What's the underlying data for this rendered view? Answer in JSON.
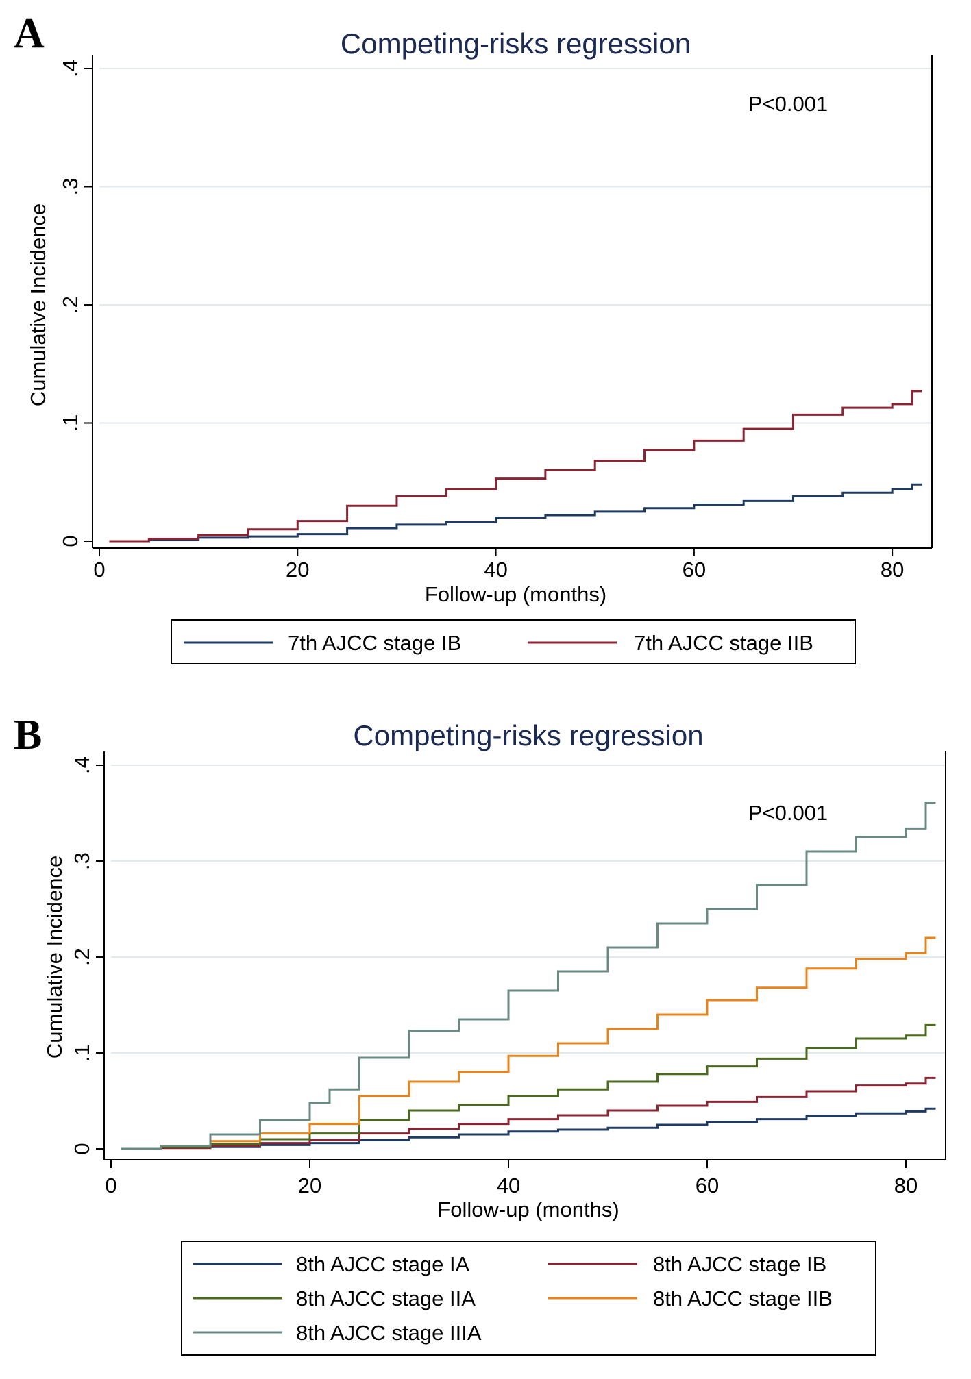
{
  "chart_data": [
    {
      "panel_label": "A",
      "type": "line",
      "step": true,
      "title": "Competing-risks regression",
      "xlabel": "Follow-up (months)",
      "ylabel": "Cumulative Incidence",
      "xlim": [
        0,
        84
      ],
      "ylim": [
        0,
        0.4
      ],
      "xticks": [
        0,
        20,
        40,
        60,
        80
      ],
      "xtick_labels": [
        "0",
        "20",
        "40",
        "60",
        "80"
      ],
      "yticks": [
        0,
        0.1,
        0.2,
        0.3,
        0.4
      ],
      "ytick_labels": [
        "0",
        ".1",
        ".2",
        ".3",
        ".4"
      ],
      "grid": true,
      "annotation": "P<0.001",
      "legend_position": "bottom",
      "series": [
        {
          "name": "7th AJCC stage IB",
          "color": "#1f3b63",
          "x": [
            1,
            5,
            10,
            15,
            20,
            25,
            30,
            35,
            40,
            45,
            50,
            55,
            60,
            65,
            70,
            75,
            80,
            82,
            83
          ],
          "y": [
            0,
            0.001,
            0.003,
            0.004,
            0.006,
            0.011,
            0.014,
            0.016,
            0.02,
            0.022,
            0.025,
            0.028,
            0.031,
            0.034,
            0.038,
            0.041,
            0.044,
            0.048,
            0.048
          ]
        },
        {
          "name": "7th AJCC stage IIB",
          "color": "#8b2332",
          "x": [
            1,
            5,
            10,
            15,
            20,
            25,
            30,
            35,
            40,
            45,
            50,
            55,
            60,
            65,
            70,
            75,
            80,
            82,
            83
          ],
          "y": [
            0,
            0.002,
            0.005,
            0.01,
            0.017,
            0.03,
            0.038,
            0.044,
            0.053,
            0.06,
            0.068,
            0.077,
            0.085,
            0.095,
            0.107,
            0.113,
            0.116,
            0.127,
            0.127
          ]
        }
      ]
    },
    {
      "panel_label": "B",
      "type": "line",
      "step": true,
      "title": "Competing-risks regression",
      "xlabel": "Follow-up (months)",
      "ylabel": "Cumulative Incidence",
      "xlim": [
        0,
        84
      ],
      "ylim": [
        0,
        0.4
      ],
      "xticks": [
        0,
        20,
        40,
        60,
        80
      ],
      "xtick_labels": [
        "0",
        "20",
        "40",
        "60",
        "80"
      ],
      "yticks": [
        0,
        0.1,
        0.2,
        0.3,
        0.4
      ],
      "ytick_labels": [
        "0",
        ".1",
        ".2",
        ".3",
        ".4"
      ],
      "grid": true,
      "annotation": "P<0.001",
      "legend_position": "bottom",
      "series": [
        {
          "name": "8th AJCC stage IA",
          "color": "#1f3b63",
          "x": [
            1,
            5,
            10,
            15,
            20,
            25,
            30,
            35,
            40,
            45,
            50,
            55,
            60,
            65,
            70,
            75,
            80,
            82,
            83
          ],
          "y": [
            0,
            0.001,
            0.002,
            0.004,
            0.006,
            0.009,
            0.012,
            0.015,
            0.018,
            0.02,
            0.022,
            0.025,
            0.028,
            0.031,
            0.034,
            0.037,
            0.039,
            0.042,
            0.042
          ]
        },
        {
          "name": "8th AJCC stage IB",
          "color": "#8b2332",
          "x": [
            1,
            5,
            10,
            15,
            20,
            25,
            30,
            35,
            40,
            45,
            50,
            55,
            60,
            65,
            70,
            75,
            80,
            82,
            83
          ],
          "y": [
            0,
            0.001,
            0.003,
            0.006,
            0.009,
            0.016,
            0.021,
            0.026,
            0.031,
            0.035,
            0.04,
            0.045,
            0.049,
            0.054,
            0.06,
            0.066,
            0.068,
            0.074,
            0.074
          ]
        },
        {
          "name": "8th AJCC stage IIA",
          "color": "#4a6a1e",
          "x": [
            1,
            5,
            10,
            15,
            20,
            25,
            30,
            35,
            40,
            45,
            50,
            55,
            60,
            65,
            70,
            75,
            80,
            82,
            83
          ],
          "y": [
            0,
            0.002,
            0.005,
            0.01,
            0.016,
            0.03,
            0.04,
            0.046,
            0.055,
            0.062,
            0.07,
            0.078,
            0.086,
            0.094,
            0.105,
            0.115,
            0.118,
            0.129,
            0.129
          ]
        },
        {
          "name": "8th AJCC stage IIB",
          "color": "#e8841a",
          "x": [
            1,
            5,
            10,
            15,
            20,
            25,
            30,
            35,
            40,
            45,
            50,
            55,
            60,
            65,
            70,
            75,
            80,
            82,
            83
          ],
          "y": [
            0,
            0.003,
            0.008,
            0.016,
            0.026,
            0.055,
            0.07,
            0.08,
            0.097,
            0.11,
            0.125,
            0.14,
            0.155,
            0.168,
            0.188,
            0.198,
            0.204,
            0.22,
            0.22
          ]
        },
        {
          "name": "8th AJCC stage IIIA",
          "color": "#6a8a84",
          "x": [
            1,
            5,
            10,
            15,
            20,
            22,
            25,
            30,
            35,
            40,
            45,
            50,
            55,
            60,
            65,
            70,
            75,
            80,
            82,
            83
          ],
          "y": [
            0,
            0.003,
            0.015,
            0.03,
            0.048,
            0.062,
            0.095,
            0.123,
            0.135,
            0.165,
            0.185,
            0.21,
            0.235,
            0.25,
            0.275,
            0.31,
            0.325,
            0.334,
            0.361,
            0.361
          ]
        }
      ]
    }
  ]
}
